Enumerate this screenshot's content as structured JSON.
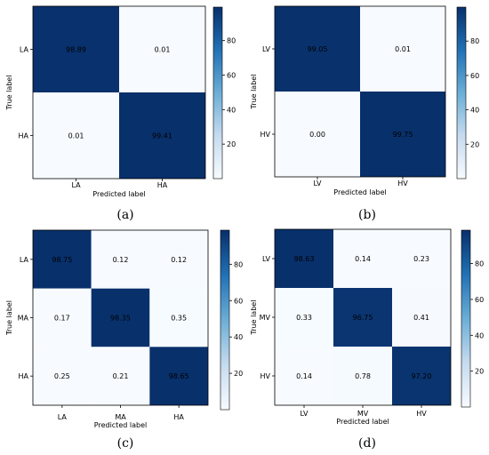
{
  "colors": {
    "low": "#f7fbff",
    "high": "#08306b"
  },
  "chart_data": [
    {
      "type": "heatmap",
      "panel_label": "(a)",
      "xlabel": "Predicted label",
      "ylabel": "True label",
      "x_categories": [
        "LA",
        "HA"
      ],
      "y_categories": [
        "LA",
        "HA"
      ],
      "values": [
        [
          98.89,
          0.01
        ],
        [
          0.01,
          99.41
        ]
      ],
      "cell_labels": [
        [
          "98.89",
          "0.01"
        ],
        [
          "0.01",
          "99.41"
        ]
      ],
      "colorbar_range": [
        0,
        99.41
      ],
      "colorbar_ticks": [
        "20",
        "40",
        "60",
        "80"
      ]
    },
    {
      "type": "heatmap",
      "panel_label": "(b)",
      "xlabel": "Predicted label",
      "ylabel": "True label",
      "x_categories": [
        "LV",
        "HV"
      ],
      "y_categories": [
        "LV",
        "HV"
      ],
      "values": [
        [
          99.05,
          0.01
        ],
        [
          0.0,
          99.75
        ]
      ],
      "cell_labels": [
        [
          "99.05",
          "0.01"
        ],
        [
          "0.00",
          "99.75"
        ]
      ],
      "colorbar_range": [
        0,
        99.75
      ],
      "colorbar_ticks": [
        "20",
        "40",
        "60",
        "80"
      ]
    },
    {
      "type": "heatmap",
      "panel_label": "(c)",
      "xlabel": "Predicted label",
      "ylabel": "True label",
      "x_categories": [
        "LA",
        "MA",
        "HA"
      ],
      "y_categories": [
        "LA",
        "MA",
        "HA"
      ],
      "values": [
        [
          98.75,
          0.12,
          0.12
        ],
        [
          0.17,
          98.35,
          0.35
        ],
        [
          0.25,
          0.21,
          98.65
        ]
      ],
      "cell_labels": [
        [
          "98.75",
          "0.12",
          "0.12"
        ],
        [
          "0.17",
          "98.35",
          "0.35"
        ],
        [
          "0.25",
          "0.21",
          "98.65"
        ]
      ],
      "colorbar_range": [
        0,
        98.75
      ],
      "colorbar_ticks": [
        "20",
        "40",
        "60",
        "80"
      ]
    },
    {
      "type": "heatmap",
      "panel_label": "(d)",
      "xlabel": "Predicted label",
      "ylabel": "True label",
      "x_categories": [
        "LV",
        "MV",
        "HV"
      ],
      "y_categories": [
        "LV",
        "MV",
        "HV"
      ],
      "values": [
        [
          98.63,
          0.14,
          0.23
        ],
        [
          0.33,
          96.75,
          0.41
        ],
        [
          0.14,
          0.78,
          97.2
        ]
      ],
      "cell_labels": [
        [
          "98.63",
          "0.14",
          "0.23"
        ],
        [
          "0.33",
          "96.75",
          "0.41"
        ],
        [
          "0.14",
          "0.78",
          "97.20"
        ]
      ],
      "colorbar_range": [
        0,
        98.63
      ],
      "colorbar_ticks": [
        "20",
        "40",
        "60",
        "80"
      ]
    }
  ]
}
